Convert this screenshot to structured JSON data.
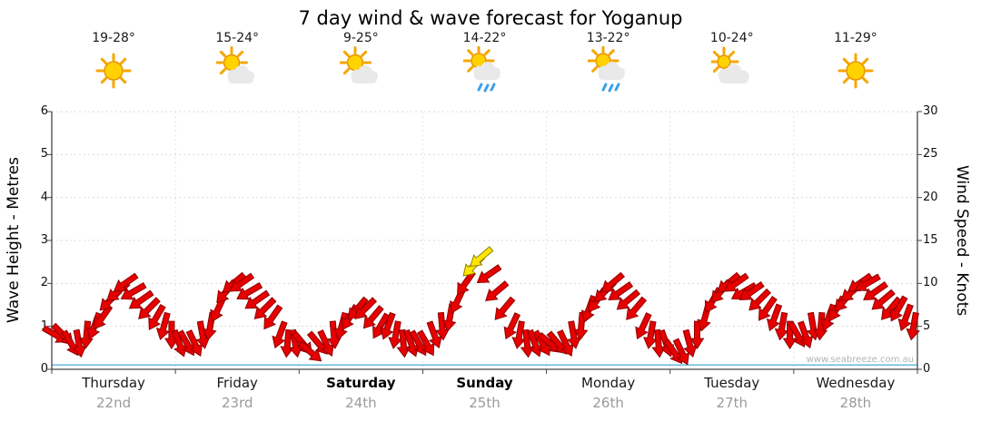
{
  "title": "7 day wind & wave forecast for Yoganup",
  "watermark": "www.seabreeze.com.au",
  "left_axis": {
    "label": "Wave Height - Metres",
    "ticks": [
      0,
      1,
      2,
      3,
      4,
      5,
      6
    ],
    "max": 6
  },
  "right_axis": {
    "label": "Wind Speed - Knots",
    "ticks": [
      0,
      5,
      10,
      15,
      20,
      25,
      30
    ],
    "max": 30
  },
  "colors": {
    "arrow_fill": "#e60000",
    "arrow_outline": "#8f0000",
    "arrow_strong_fill": "#ffe600",
    "arrow_strong_outline": "#8f8000",
    "wave_line": "#66b8e0",
    "grid": "#d9d9d9",
    "day_separator": "#e3e3e3",
    "axis": "#444444",
    "sun": "#ffd200",
    "sun_ray": "#f7a600",
    "cloud": "#e9e9e9",
    "rain": "#3aa0e8"
  },
  "chart_data": {
    "type": "scatter",
    "subtype": "wind-direction-arrows",
    "title": "7 day wind & wave forecast for Yoganup",
    "y_left": {
      "label": "Wave Height - Metres",
      "range": [
        0,
        6
      ],
      "grid": true
    },
    "y_right": {
      "label": "Wind Speed - Knots",
      "range": [
        0,
        30
      ]
    },
    "points_per_day": 16,
    "strong_wind_threshold_knots": 12,
    "wave_series": {
      "name": "Wave Height (m)",
      "constant_m": 0.1
    },
    "days": [
      {
        "name": "Thursday",
        "date": "22nd",
        "temp": "19-28°",
        "icon": "sunny",
        "bold": false,
        "wind_speeds": [
          4,
          4,
          3,
          3,
          4,
          5,
          6,
          8,
          9,
          10,
          9,
          8,
          7,
          6,
          5,
          4
        ],
        "wind_dirs": [
          120,
          135,
          150,
          170,
          185,
          200,
          215,
          225,
          230,
          235,
          240,
          235,
          225,
          210,
          195,
          180
        ]
      },
      {
        "name": "Friday",
        "date": "23rd",
        "temp": "15-24°",
        "icon": "partly-cloudy",
        "bold": false,
        "wind_speeds": [
          3,
          3,
          3,
          4,
          5,
          7,
          9,
          10,
          10,
          9,
          8,
          7,
          6,
          4,
          3,
          3
        ],
        "wind_dirs": [
          160,
          150,
          155,
          170,
          190,
          205,
          220,
          230,
          235,
          240,
          235,
          225,
          215,
          200,
          185,
          170
        ]
      },
      {
        "name": "Saturday",
        "date": "24th",
        "temp": "9-25°",
        "icon": "partly-cloudy",
        "bold": true,
        "wind_speeds": [
          3,
          2,
          3,
          3,
          4,
          5,
          6,
          7,
          7,
          6,
          5,
          5,
          4,
          3,
          3,
          3
        ],
        "wind_dirs": [
          140,
          130,
          140,
          155,
          175,
          195,
          210,
          220,
          225,
          220,
          210,
          200,
          190,
          175,
          160,
          150
        ]
      },
      {
        "name": "Sunday",
        "date": "25th",
        "temp": "14-22°",
        "icon": "showers",
        "bold": true,
        "wind_speeds": [
          3,
          4,
          5,
          6,
          8,
          10,
          12,
          13,
          11,
          9,
          7,
          5,
          4,
          3,
          3,
          3
        ],
        "wind_dirs": [
          150,
          160,
          175,
          190,
          205,
          215,
          225,
          230,
          235,
          230,
          220,
          205,
          190,
          175,
          160,
          150
        ]
      },
      {
        "name": "Monday",
        "date": "26th",
        "temp": "13-22°",
        "icon": "showers",
        "bold": false,
        "wind_speeds": [
          3,
          3,
          3,
          4,
          5,
          7,
          8,
          9,
          10,
          9,
          8,
          7,
          5,
          4,
          3,
          3
        ],
        "wind_dirs": [
          130,
          140,
          155,
          170,
          185,
          200,
          215,
          225,
          230,
          235,
          230,
          220,
          205,
          190,
          175,
          160
        ]
      },
      {
        "name": "Tuesday",
        "date": "27th",
        "temp": "10-24°",
        "icon": "mostly-cloudy",
        "bold": false,
        "wind_speeds": [
          2,
          2,
          3,
          4,
          6,
          8,
          9,
          10,
          10,
          9,
          9,
          8,
          7,
          6,
          5,
          4
        ],
        "wind_dirs": [
          145,
          155,
          165,
          180,
          195,
          210,
          220,
          230,
          235,
          240,
          235,
          225,
          215,
          200,
          190,
          180
        ]
      },
      {
        "name": "Wednesday",
        "date": "28th",
        "temp": "11-29°",
        "icon": "sunny",
        "bold": false,
        "wind_speeds": [
          4,
          4,
          5,
          5,
          6,
          7,
          8,
          9,
          10,
          10,
          9,
          8,
          7,
          7,
          6,
          5
        ],
        "wind_dirs": [
          150,
          160,
          170,
          185,
          200,
          210,
          220,
          230,
          235,
          240,
          235,
          230,
          220,
          210,
          200,
          190
        ]
      }
    ]
  }
}
